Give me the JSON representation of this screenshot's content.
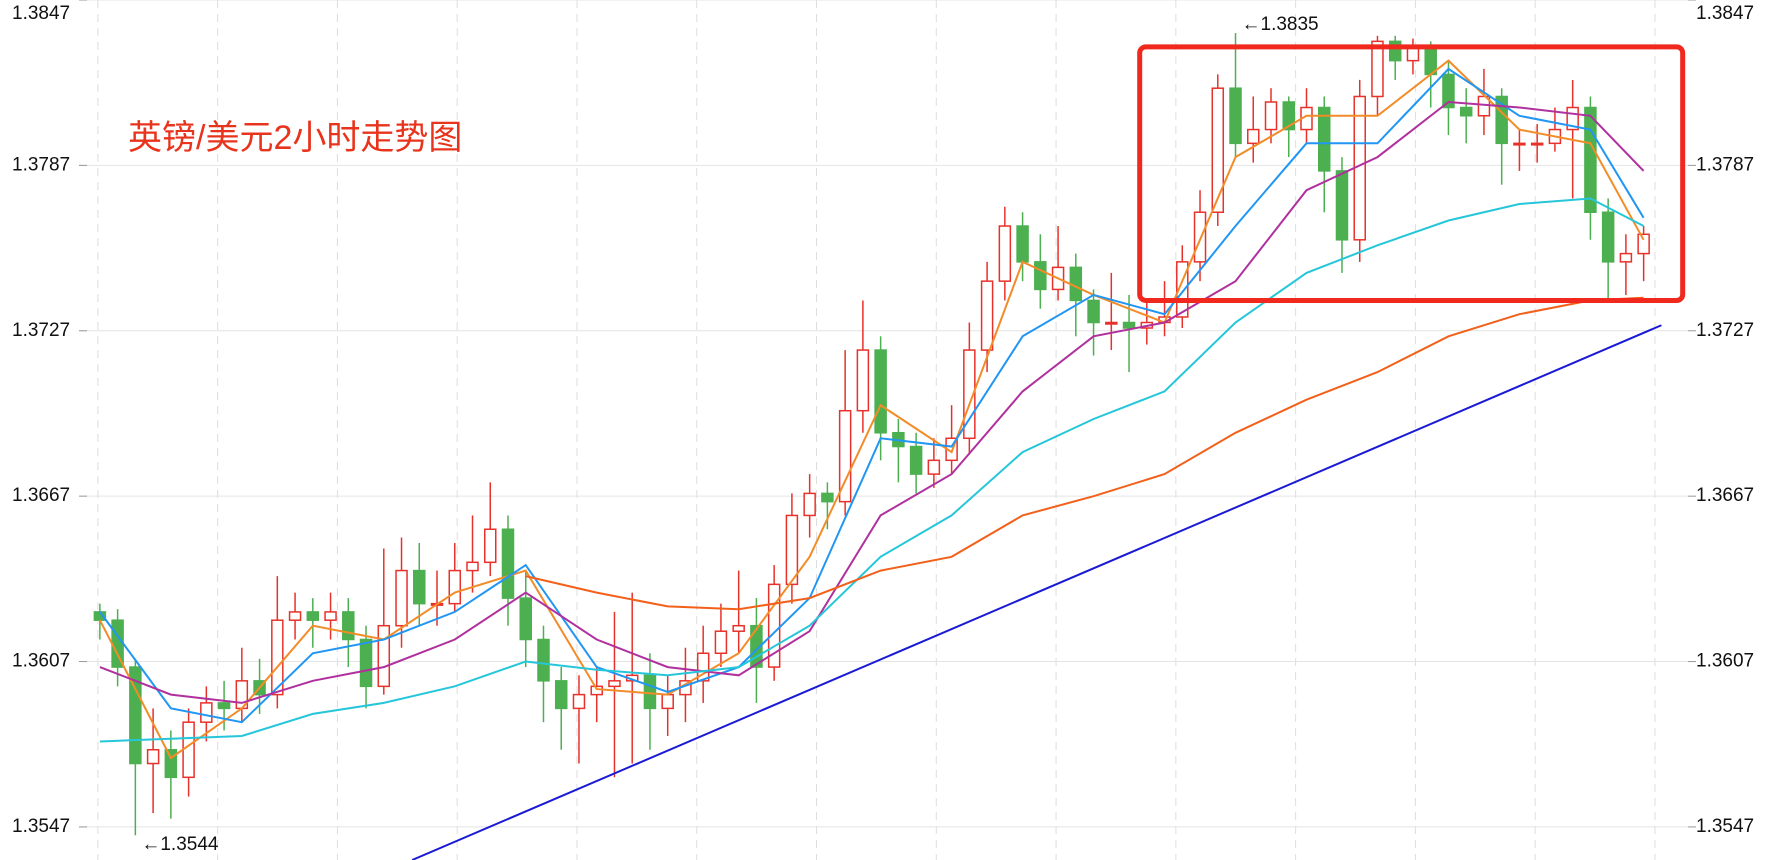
{
  "chart_data": {
    "type": "candlestick",
    "title": "英镑/美元2小时走势图",
    "up_color": "#e8312a",
    "down_color": "#4caf50",
    "xlim": [
      -0.5,
      89.5
    ],
    "ylim": [
      1.3535,
      1.3847
    ],
    "yticks": [
      1.3547,
      1.3607,
      1.3667,
      1.3727,
      1.3787,
      1.3847
    ],
    "grid": true,
    "open": [
      1.3625,
      1.3622,
      1.3605,
      1.357,
      1.3575,
      1.3565,
      1.3585,
      1.3592,
      1.359,
      1.36,
      1.3595,
      1.3622,
      1.3625,
      1.3622,
      1.3625,
      1.3615,
      1.3598,
      1.362,
      1.364,
      1.3628,
      1.3628,
      1.364,
      1.3643,
      1.3655,
      1.363,
      1.3615,
      1.36,
      1.359,
      1.3595,
      1.3598,
      1.36,
      1.3602,
      1.359,
      1.3595,
      1.36,
      1.361,
      1.3618,
      1.362,
      1.3605,
      1.3635,
      1.366,
      1.3668,
      1.3665,
      1.3698,
      1.372,
      1.369,
      1.3685,
      1.3675,
      1.368,
      1.3688,
      1.372,
      1.3745,
      1.3765,
      1.3752,
      1.3742,
      1.375,
      1.3738,
      1.373,
      1.373,
      1.3728,
      1.373,
      1.3732,
      1.3752,
      1.377,
      1.3815,
      1.3795,
      1.38,
      1.381,
      1.38,
      1.3808,
      1.3785,
      1.376,
      1.3812,
      1.3832,
      1.3825,
      1.383,
      1.382,
      1.3808,
      1.3805,
      1.3812,
      1.3795,
      1.3795,
      1.3795,
      1.38,
      1.3808,
      1.377,
      1.3752,
      1.3755
    ],
    "high": [
      1.3628,
      1.3626,
      1.3608,
      1.359,
      1.3582,
      1.359,
      1.3598,
      1.36,
      1.3612,
      1.3608,
      1.3638,
      1.3632,
      1.363,
      1.3632,
      1.363,
      1.362,
      1.3648,
      1.3652,
      1.365,
      1.364,
      1.365,
      1.366,
      1.3672,
      1.366,
      1.364,
      1.362,
      1.3605,
      1.3602,
      1.3605,
      1.3625,
      1.3632,
      1.361,
      1.3602,
      1.3612,
      1.362,
      1.3628,
      1.364,
      1.363,
      1.3642,
      1.3668,
      1.3675,
      1.3672,
      1.372,
      1.3738,
      1.3725,
      1.3695,
      1.369,
      1.3688,
      1.37,
      1.373,
      1.3752,
      1.3772,
      1.377,
      1.3762,
      1.3765,
      1.3755,
      1.3742,
      1.3748,
      1.374,
      1.3738,
      1.3745,
      1.3758,
      1.3778,
      1.382,
      1.3835,
      1.3812,
      1.3815,
      1.3812,
      1.3815,
      1.3812,
      1.379,
      1.3818,
      1.3834,
      1.3834,
      1.3833,
      1.3832,
      1.3825,
      1.3815,
      1.3822,
      1.3815,
      1.38,
      1.3802,
      1.3808,
      1.3818,
      1.3812,
      1.3775,
      1.3762,
      1.3765
    ],
    "low": [
      1.3615,
      1.3598,
      1.3544,
      1.3552,
      1.355,
      1.3558,
      1.3578,
      1.3582,
      1.3585,
      1.3588,
      1.359,
      1.3615,
      1.3612,
      1.3615,
      1.3605,
      1.359,
      1.3595,
      1.3612,
      1.362,
      1.362,
      1.3625,
      1.3632,
      1.3638,
      1.362,
      1.3605,
      1.3585,
      1.3575,
      1.357,
      1.3585,
      1.3565,
      1.357,
      1.3575,
      1.358,
      1.3585,
      1.3592,
      1.3605,
      1.361,
      1.3592,
      1.36,
      1.3628,
      1.3652,
      1.3655,
      1.366,
      1.369,
      1.368,
      1.3672,
      1.3668,
      1.367,
      1.3675,
      1.3682,
      1.3712,
      1.3738,
      1.3745,
      1.3735,
      1.3738,
      1.3725,
      1.3718,
      1.372,
      1.3712,
      1.3722,
      1.3725,
      1.3728,
      1.3745,
      1.3765,
      1.379,
      1.3788,
      1.3795,
      1.379,
      1.3795,
      1.377,
      1.3748,
      1.3752,
      1.3805,
      1.3818,
      1.382,
      1.3808,
      1.3798,
      1.3795,
      1.3798,
      1.378,
      1.3785,
      1.3788,
      1.3792,
      1.3775,
      1.376,
      1.3738,
      1.374,
      1.3745
    ],
    "close": [
      1.3622,
      1.3605,
      1.357,
      1.3575,
      1.3565,
      1.3585,
      1.3592,
      1.359,
      1.36,
      1.3595,
      1.3622,
      1.3625,
      1.3622,
      1.3625,
      1.3615,
      1.3598,
      1.362,
      1.364,
      1.3628,
      1.3628,
      1.364,
      1.3643,
      1.3655,
      1.363,
      1.3615,
      1.36,
      1.359,
      1.3595,
      1.3598,
      1.36,
      1.3602,
      1.359,
      1.3595,
      1.36,
      1.361,
      1.3618,
      1.362,
      1.3605,
      1.3635,
      1.366,
      1.3668,
      1.3665,
      1.3698,
      1.372,
      1.369,
      1.3685,
      1.3675,
      1.368,
      1.3688,
      1.372,
      1.3745,
      1.3765,
      1.3752,
      1.3742,
      1.375,
      1.3738,
      1.373,
      1.373,
      1.3728,
      1.373,
      1.3732,
      1.3752,
      1.377,
      1.3815,
      1.3795,
      1.38,
      1.381,
      1.38,
      1.3808,
      1.3785,
      1.376,
      1.3812,
      1.3832,
      1.3825,
      1.383,
      1.382,
      1.3808,
      1.3805,
      1.3812,
      1.3795,
      1.3795,
      1.3795,
      1.38,
      1.3808,
      1.377,
      1.3752,
      1.3755,
      1.3762
    ],
    "lines": [
      {
        "color": "#f28c28",
        "x": [
          0,
          4,
          8,
          12,
          16,
          20,
          24,
          28,
          32,
          36,
          40,
          44,
          48,
          52,
          56,
          60,
          64,
          68,
          72,
          76,
          80,
          84,
          87
        ],
        "values": [
          1.3622,
          1.3572,
          1.359,
          1.362,
          1.3615,
          1.3632,
          1.364,
          1.3597,
          1.3595,
          1.361,
          1.3645,
          1.37,
          1.3683,
          1.3752,
          1.374,
          1.373,
          1.379,
          1.3805,
          1.3805,
          1.3825,
          1.38,
          1.3795,
          1.376
        ]
      },
      {
        "color": "#2196f3",
        "x": [
          0,
          4,
          8,
          12,
          16,
          20,
          24,
          28,
          32,
          36,
          40,
          44,
          48,
          52,
          56,
          60,
          64,
          68,
          72,
          76,
          80,
          84,
          87
        ],
        "values": [
          1.3625,
          1.359,
          1.3585,
          1.361,
          1.3615,
          1.3625,
          1.3642,
          1.3605,
          1.3596,
          1.3605,
          1.363,
          1.3688,
          1.3685,
          1.3725,
          1.374,
          1.3733,
          1.3765,
          1.3795,
          1.3795,
          1.3822,
          1.3805,
          1.38,
          1.3768
        ]
      },
      {
        "color": "#b0309e",
        "x": [
          0,
          4,
          8,
          12,
          16,
          20,
          24,
          28,
          32,
          36,
          40,
          44,
          48,
          52,
          56,
          60,
          64,
          68,
          72,
          76,
          80,
          84,
          87
        ],
        "values": [
          1.3605,
          1.3595,
          1.3592,
          1.36,
          1.3605,
          1.3615,
          1.3632,
          1.3615,
          1.3605,
          1.3602,
          1.3618,
          1.366,
          1.3675,
          1.3705,
          1.3725,
          1.373,
          1.3745,
          1.3778,
          1.379,
          1.381,
          1.3808,
          1.3805,
          1.3785
        ]
      },
      {
        "color": "#26c6da",
        "x": [
          0,
          4,
          8,
          12,
          16,
          20,
          24,
          28,
          32,
          36,
          40,
          44,
          48,
          52,
          56,
          60,
          64,
          68,
          72,
          76,
          80,
          84,
          87
        ],
        "values": [
          1.3578,
          1.3579,
          1.358,
          1.3588,
          1.3592,
          1.3598,
          1.3607,
          1.3604,
          1.3602,
          1.3605,
          1.362,
          1.3645,
          1.366,
          1.3683,
          1.3695,
          1.3705,
          1.373,
          1.3748,
          1.3758,
          1.3767,
          1.3773,
          1.3775,
          1.3765
        ]
      },
      {
        "color": "#f2601a",
        "x": [
          0,
          4,
          8,
          12,
          16,
          20,
          24,
          28,
          32,
          36,
          40,
          44,
          48,
          52,
          56,
          60,
          64,
          68,
          72,
          76,
          80,
          84,
          87
        ],
        "values": [
          null,
          null,
          null,
          null,
          null,
          null,
          1.3638,
          1.3632,
          1.3627,
          1.3626,
          1.363,
          1.364,
          1.3645,
          1.366,
          1.3667,
          1.3675,
          1.369,
          1.3702,
          1.3712,
          1.3725,
          1.3733,
          1.3738,
          1.3739
        ]
      }
    ],
    "trendline": {
      "color": "#1a1ad6",
      "x": [
        17.6,
        88
      ],
      "y": [
        1.3535,
        1.3729
      ]
    },
    "highlight_box": {
      "color": "#f0281e",
      "x": [
        58.6,
        89.2
      ],
      "y": [
        1.3738,
        1.383
      ]
    },
    "annotations": [
      {
        "text": "←1.3835",
        "x": 64,
        "y": 1.3835
      },
      {
        "text": "←1.3544",
        "x": 2,
        "y": 1.3544
      }
    ]
  }
}
